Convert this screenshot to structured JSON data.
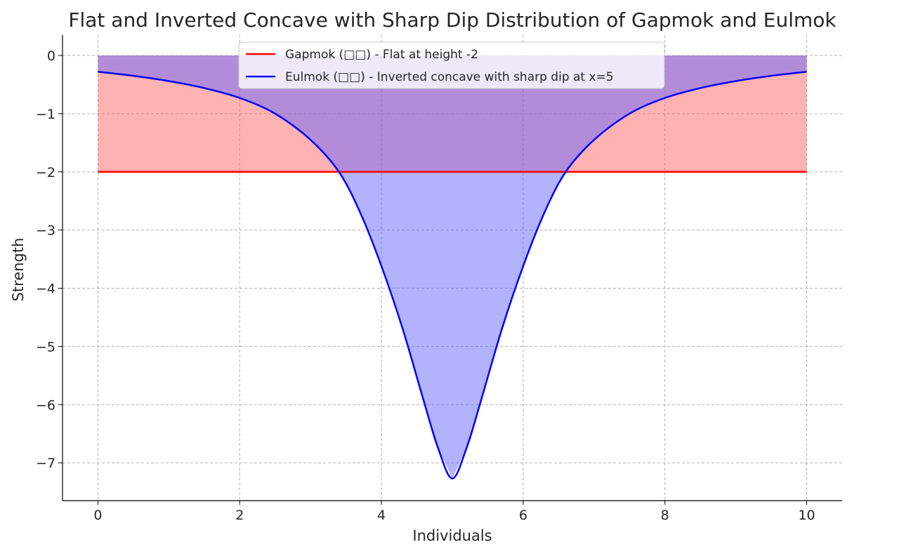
{
  "chart_data": {
    "type": "area",
    "title": "Flat and Inverted Concave with Sharp Dip Distribution of Gapmok and Eulmok",
    "xlabel": "Individuals",
    "ylabel": "Strength",
    "xlim": [
      -0.5,
      10.5
    ],
    "ylim": [
      -7.65,
      0.35
    ],
    "xticks": [
      0,
      2,
      4,
      6,
      8,
      10
    ],
    "xtick_labels": [
      "0",
      "2",
      "4",
      "6",
      "8",
      "10"
    ],
    "yticks": [
      0,
      -1,
      -2,
      -3,
      -4,
      -5,
      -6,
      -7
    ],
    "ytick_labels": [
      "0",
      "−1",
      "−2",
      "−3",
      "−4",
      "−5",
      "−6",
      "−7"
    ],
    "grid": true,
    "legend_position": "upper-center",
    "series": [
      {
        "name": "Gapmok",
        "legend_label": "Gapmok (□□) - Flat at height -2",
        "line_color": "#ff0000",
        "fill_color": "#ff6666",
        "fill_opacity": 0.5,
        "x": [
          0,
          10
        ],
        "y": [
          -2,
          -2
        ],
        "fill_to": 0
      },
      {
        "name": "Eulmok",
        "legend_label": "Eulmok (□□) - Inverted concave with sharp dip at x=5",
        "line_color": "#0000ff",
        "fill_color": "#6666ff",
        "fill_opacity": 0.5,
        "x": [
          0,
          0.5,
          1,
          1.5,
          2,
          2.5,
          3,
          3.4,
          3.7,
          4,
          4.3,
          4.6,
          4.8,
          5,
          5.2,
          5.4,
          5.7,
          6,
          6.3,
          6.6,
          7,
          7.5,
          8,
          8.5,
          9,
          9.5,
          10
        ],
        "y": [
          -0.28,
          -0.35,
          -0.44,
          -0.56,
          -0.73,
          -1.0,
          -1.45,
          -2.0,
          -2.7,
          -3.62,
          -4.7,
          -5.95,
          -6.75,
          -7.27,
          -6.75,
          -5.95,
          -4.7,
          -3.62,
          -2.7,
          -2.0,
          -1.45,
          -1.0,
          -0.73,
          -0.56,
          -0.44,
          -0.35,
          -0.28
        ],
        "fill_to": 0
      }
    ]
  }
}
